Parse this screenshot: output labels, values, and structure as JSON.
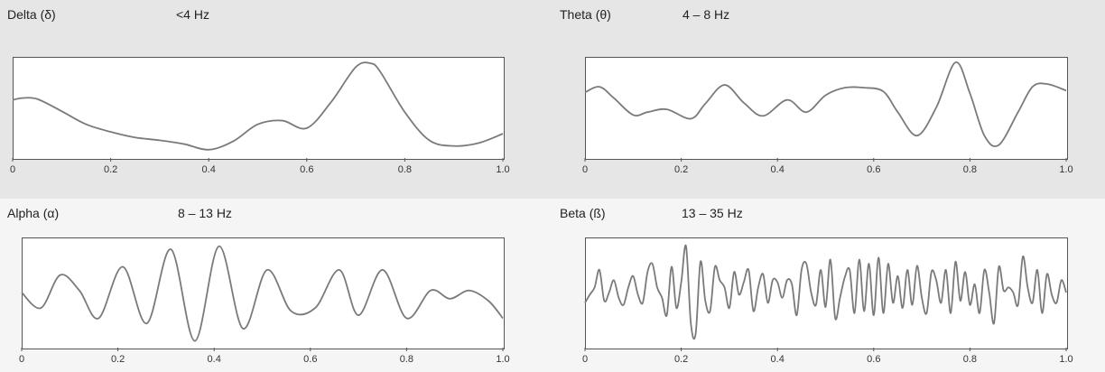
{
  "chart_data": [
    {
      "type": "line",
      "title": "Delta (δ)",
      "band": "<4 Hz",
      "xlim": [
        0,
        1.0
      ],
      "xticks": [
        "0",
        "0.2",
        "0.4",
        "0.6",
        "0.8",
        "1.0"
      ],
      "series": [
        {
          "x": [
            0,
            0.02,
            0.05,
            0.1,
            0.15,
            0.2,
            0.25,
            0.3,
            0.35,
            0.4,
            0.45,
            0.5,
            0.55,
            0.6,
            0.65,
            0.7,
            0.73,
            0.75,
            0.8,
            0.85,
            0.9,
            0.95,
            1.0
          ],
          "y": [
            0.58,
            0.6,
            0.59,
            0.46,
            0.32,
            0.24,
            0.18,
            0.15,
            0.11,
            0.05,
            0.14,
            0.32,
            0.36,
            0.28,
            0.56,
            0.93,
            0.97,
            0.88,
            0.45,
            0.15,
            0.09,
            0.12,
            0.22
          ]
        }
      ]
    },
    {
      "type": "line",
      "title": "Theta (θ)",
      "band": "4 – 8 Hz",
      "xlim": [
        0,
        1.0
      ],
      "xticks": [
        "0",
        "0.2",
        "0.4",
        "0.6",
        "0.8",
        "1.0"
      ],
      "series": [
        {
          "x": [
            0,
            0.03,
            0.06,
            0.1,
            0.13,
            0.17,
            0.22,
            0.25,
            0.29,
            0.33,
            0.37,
            0.42,
            0.46,
            0.5,
            0.54,
            0.58,
            0.62,
            0.65,
            0.69,
            0.73,
            0.77,
            0.8,
            0.83,
            0.86,
            0.9,
            0.93,
            0.96,
            1.0
          ],
          "y": [
            0.66,
            0.72,
            0.6,
            0.42,
            0.45,
            0.48,
            0.38,
            0.54,
            0.74,
            0.55,
            0.41,
            0.58,
            0.45,
            0.63,
            0.71,
            0.71,
            0.67,
            0.45,
            0.2,
            0.5,
            0.98,
            0.65,
            0.2,
            0.1,
            0.45,
            0.72,
            0.75,
            0.68
          ]
        }
      ]
    },
    {
      "type": "line",
      "title": "Alpha (α)",
      "band": "8 – 13 Hz",
      "xlim": [
        0,
        1.0
      ],
      "xticks": [
        "0",
        "0.2",
        "0.4",
        "0.6",
        "0.8",
        "1.0"
      ],
      "series": [
        {
          "x": [
            0,
            0.04,
            0.08,
            0.12,
            0.16,
            0.21,
            0.26,
            0.31,
            0.36,
            0.41,
            0.46,
            0.51,
            0.56,
            0.61,
            0.66,
            0.7,
            0.75,
            0.8,
            0.85,
            0.89,
            0.93,
            0.97,
            1.0
          ],
          "y": [
            0.5,
            0.35,
            0.67,
            0.52,
            0.25,
            0.75,
            0.2,
            0.92,
            0.03,
            0.95,
            0.15,
            0.72,
            0.32,
            0.35,
            0.72,
            0.28,
            0.72,
            0.25,
            0.52,
            0.44,
            0.52,
            0.42,
            0.25
          ]
        }
      ]
    },
    {
      "type": "line",
      "title": "Beta (ß)",
      "band": "13 – 35 Hz",
      "xlim": [
        0,
        1.0
      ],
      "xticks": [
        "0",
        "0.2",
        "0.4",
        "0.6",
        "0.8",
        "1.0"
      ],
      "series": [
        {
          "x": [
            0,
            0.01,
            0.02,
            0.03,
            0.04,
            0.05,
            0.06,
            0.07,
            0.08,
            0.09,
            0.1,
            0.11,
            0.12,
            0.13,
            0.14,
            0.15,
            0.16,
            0.17,
            0.18,
            0.19,
            0.2,
            0.21,
            0.22,
            0.23,
            0.24,
            0.25,
            0.26,
            0.27,
            0.28,
            0.29,
            0.3,
            0.31,
            0.32,
            0.33,
            0.34,
            0.35,
            0.36,
            0.37,
            0.38,
            0.39,
            0.4,
            0.41,
            0.42,
            0.43,
            0.44,
            0.45,
            0.46,
            0.47,
            0.48,
            0.49,
            0.5,
            0.51,
            0.52,
            0.53,
            0.54,
            0.55,
            0.56,
            0.57,
            0.58,
            0.59,
            0.6,
            0.61,
            0.62,
            0.63,
            0.64,
            0.65,
            0.66,
            0.67,
            0.68,
            0.69,
            0.7,
            0.71,
            0.72,
            0.73,
            0.74,
            0.75,
            0.76,
            0.77,
            0.78,
            0.79,
            0.8,
            0.81,
            0.82,
            0.83,
            0.84,
            0.85,
            0.86,
            0.87,
            0.88,
            0.89,
            0.9,
            0.91,
            0.92,
            0.93,
            0.94,
            0.95,
            0.96,
            0.97,
            0.98,
            0.99,
            1.0
          ],
          "y": [
            0.4,
            0.48,
            0.55,
            0.72,
            0.42,
            0.5,
            0.62,
            0.45,
            0.38,
            0.55,
            0.66,
            0.48,
            0.4,
            0.7,
            0.78,
            0.55,
            0.45,
            0.28,
            0.75,
            0.35,
            0.6,
            0.95,
            0.2,
            0.1,
            0.8,
            0.42,
            0.32,
            0.75,
            0.62,
            0.55,
            0.35,
            0.7,
            0.48,
            0.6,
            0.72,
            0.32,
            0.55,
            0.68,
            0.4,
            0.62,
            0.6,
            0.45,
            0.62,
            0.58,
            0.28,
            0.72,
            0.78,
            0.5,
            0.38,
            0.72,
            0.36,
            0.82,
            0.25,
            0.45,
            0.65,
            0.72,
            0.3,
            0.82,
            0.32,
            0.78,
            0.28,
            0.84,
            0.3,
            0.78,
            0.4,
            0.66,
            0.35,
            0.72,
            0.38,
            0.76,
            0.45,
            0.3,
            0.7,
            0.62,
            0.4,
            0.72,
            0.3,
            0.8,
            0.42,
            0.7,
            0.38,
            0.58,
            0.3,
            0.72,
            0.5,
            0.2,
            0.75,
            0.52,
            0.55,
            0.5,
            0.38,
            0.85,
            0.55,
            0.4,
            0.72,
            0.3,
            0.68,
            0.48,
            0.4,
            0.62,
            0.5
          ]
        }
      ]
    }
  ]
}
